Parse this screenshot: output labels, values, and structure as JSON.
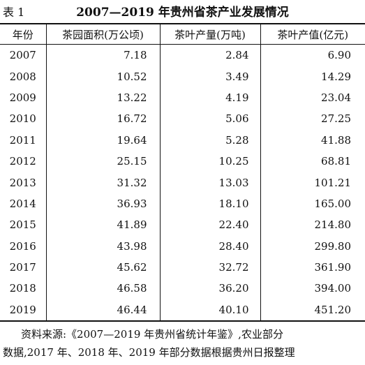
{
  "caption": {
    "label": "表 1",
    "title": "2007—2019 年贵州省茶产业发展情况"
  },
  "table": {
    "headers": [
      "年份",
      "茶园面积(万公顷)",
      "茶叶产量(万吨)",
      "茶叶产值(亿元)"
    ],
    "rows": [
      {
        "year": "2007",
        "area": "7.18",
        "output": "2.84",
        "value": "6.90"
      },
      {
        "year": "2008",
        "area": "10.52",
        "output": "3.49",
        "value": "14.29"
      },
      {
        "year": "2009",
        "area": "13.22",
        "output": "4.19",
        "value": "23.04"
      },
      {
        "year": "2010",
        "area": "16.72",
        "output": "5.06",
        "value": "27.25"
      },
      {
        "year": "2011",
        "area": "19.64",
        "output": "5.28",
        "value": "41.88"
      },
      {
        "year": "2012",
        "area": "25.15",
        "output": "10.25",
        "value": "68.81"
      },
      {
        "year": "2013",
        "area": "31.32",
        "output": "13.03",
        "value": "101.21"
      },
      {
        "year": "2014",
        "area": "36.93",
        "output": "18.10",
        "value": "165.00"
      },
      {
        "year": "2015",
        "area": "41.89",
        "output": "22.40",
        "value": "214.80"
      },
      {
        "year": "2016",
        "area": "43.98",
        "output": "28.40",
        "value": "299.80"
      },
      {
        "year": "2017",
        "area": "45.62",
        "output": "32.72",
        "value": "361.90"
      },
      {
        "year": "2018",
        "area": "46.58",
        "output": "36.20",
        "value": "394.00"
      },
      {
        "year": "2019",
        "area": "46.44",
        "output": "40.10",
        "value": "451.20"
      }
    ]
  },
  "source_note": {
    "line1": "资料来源:《2007—2019 年贵州省统计年鉴》,农业部分",
    "line2": "数据,2017 年、2018 年、2019 年部分数据根据贵州日报整理"
  }
}
